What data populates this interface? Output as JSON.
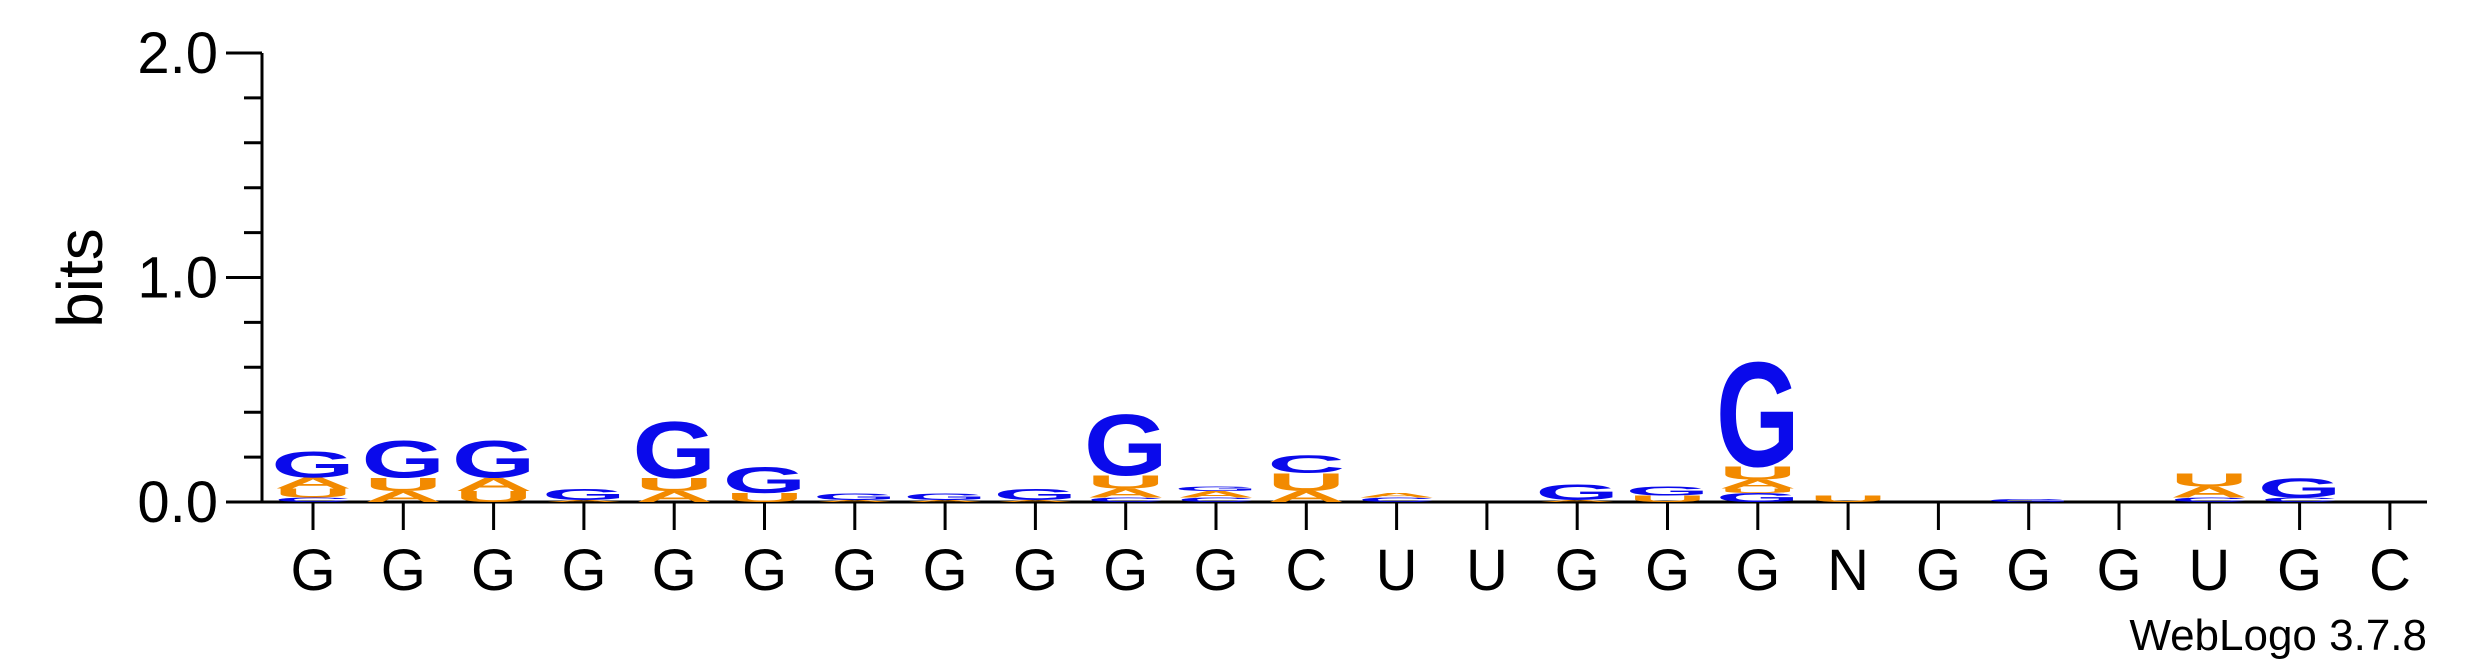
{
  "chart_data": {
    "type": "sequence-logo",
    "ylabel": "bits",
    "ylim": [
      0,
      2.0
    ],
    "y_ticks": [
      "0.0",
      "1.0",
      "2.0"
    ],
    "x_labels": [
      "G",
      "G",
      "G",
      "G",
      "G",
      "G",
      "G",
      "G",
      "G",
      "G",
      "G",
      "C",
      "U",
      "U",
      "G",
      "G",
      "G",
      "N",
      "G",
      "G",
      "G",
      "U",
      "G",
      "C"
    ],
    "colors": {
      "G": "#0a0aeb",
      "U": "#f28a00",
      "A": "#f28a00",
      "C": "#0a0aeb"
    },
    "positions": [
      [
        {
          "l": "C",
          "v": 0.02
        },
        {
          "l": "U",
          "v": 0.04
        },
        {
          "l": "A",
          "v": 0.05
        },
        {
          "l": "G",
          "v": 0.12
        }
      ],
      [
        {
          "l": "A",
          "v": 0.05
        },
        {
          "l": "U",
          "v": 0.06
        },
        {
          "l": "G",
          "v": 0.17
        }
      ],
      [
        {
          "l": "U",
          "v": 0.05
        },
        {
          "l": "A",
          "v": 0.06
        },
        {
          "l": "G",
          "v": 0.17
        }
      ],
      [
        {
          "l": "A",
          "v": 0.01
        },
        {
          "l": "G",
          "v": 0.05
        }
      ],
      [
        {
          "l": "A",
          "v": 0.05
        },
        {
          "l": "U",
          "v": 0.06
        },
        {
          "l": "G",
          "v": 0.26
        }
      ],
      [
        {
          "l": "U",
          "v": 0.04
        },
        {
          "l": "G",
          "v": 0.12
        }
      ],
      [
        {
          "l": "A",
          "v": 0.01
        },
        {
          "l": "G",
          "v": 0.03
        }
      ],
      [
        {
          "l": "A",
          "v": 0.01
        },
        {
          "l": "G",
          "v": 0.03
        }
      ],
      [
        {
          "l": "A",
          "v": 0.01
        },
        {
          "l": "G",
          "v": 0.05
        }
      ],
      [
        {
          "l": "C",
          "v": 0.02
        },
        {
          "l": "A",
          "v": 0.04
        },
        {
          "l": "U",
          "v": 0.06
        },
        {
          "l": "G",
          "v": 0.28
        }
      ],
      [
        {
          "l": "C",
          "v": 0.02
        },
        {
          "l": "A",
          "v": 0.03
        },
        {
          "l": "G",
          "v": 0.02
        }
      ],
      [
        {
          "l": "A",
          "v": 0.05
        },
        {
          "l": "U",
          "v": 0.08
        },
        {
          "l": "C",
          "v": 0.08
        }
      ],
      [
        {
          "l": "C",
          "v": 0.02
        },
        {
          "l": "A",
          "v": 0.02
        }
      ],
      [],
      [
        {
          "l": "A",
          "v": 0.01
        },
        {
          "l": "G",
          "v": 0.07
        }
      ],
      [
        {
          "l": "U",
          "v": 0.03
        },
        {
          "l": "G",
          "v": 0.04
        }
      ],
      [
        {
          "l": "G",
          "v": 0.04
        },
        {
          "l": "U",
          "v": 0.02
        },
        {
          "l": "A",
          "v": 0.04
        },
        {
          "l": "U",
          "v": 0.06
        },
        {
          "l": "G",
          "v": 0.48
        }
      ],
      [
        {
          "l": "U",
          "v": 0.03
        }
      ],
      [],
      [
        {
          "l": "G",
          "v": 0.015
        }
      ],
      [],
      [
        {
          "l": "C",
          "v": 0.02
        },
        {
          "l": "A",
          "v": 0.05
        },
        {
          "l": "U",
          "v": 0.06
        }
      ],
      [
        {
          "l": "C",
          "v": 0.02
        },
        {
          "l": "G",
          "v": 0.09
        }
      ],
      []
    ]
  },
  "footer": {
    "credit": "WebLogo 3.7.8"
  }
}
